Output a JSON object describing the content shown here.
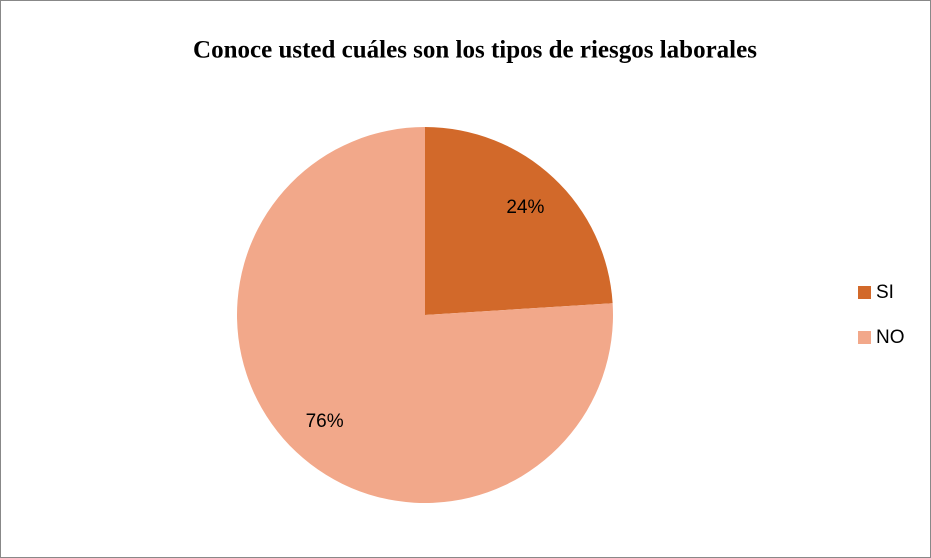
{
  "chart_data": {
    "type": "pie",
    "title": "Conoce usted cuáles son los tipos de riesgos laborales",
    "categories": [
      "SI",
      "NO"
    ],
    "values": [
      24,
      76
    ],
    "value_labels": [
      "24%",
      "76%"
    ],
    "colors": [
      "#d2692a",
      "#f2a88a"
    ],
    "legend": "right"
  }
}
